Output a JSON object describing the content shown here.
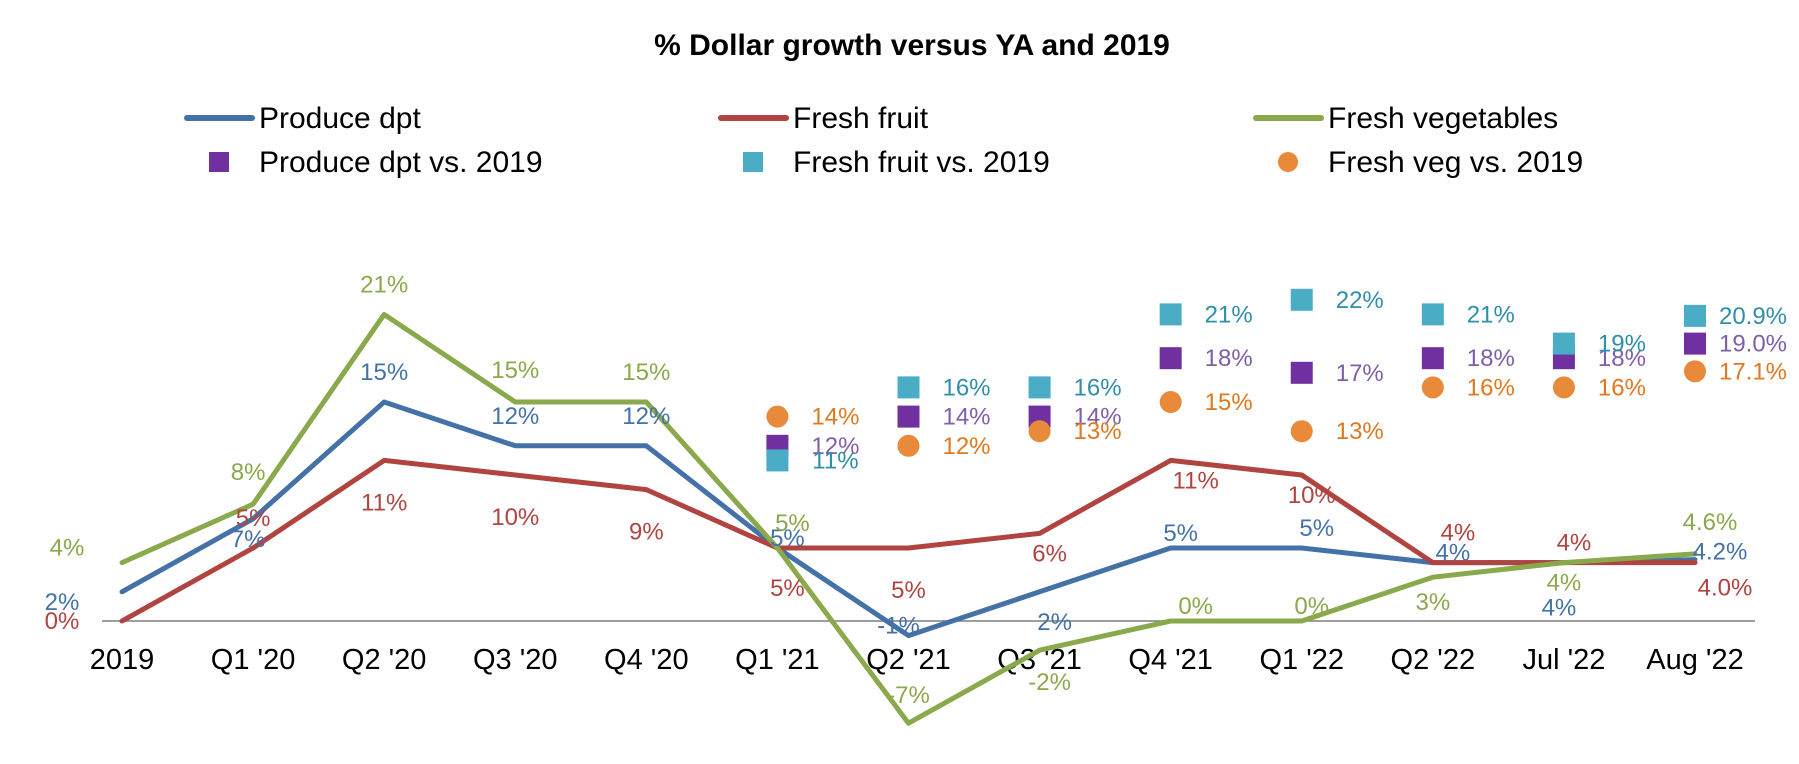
{
  "chart_data": {
    "type": "line",
    "title": "% Dollar growth versus YA and 2019",
    "xlabel": "",
    "ylabel": "",
    "ylim": [
      -10,
      30
    ],
    "grid": false,
    "legend_position": "top",
    "categories": [
      "2019",
      "Q1 '20",
      "Q2 '20",
      "Q3 '20",
      "Q4 '20",
      "Q1 '21",
      "Q2 '21",
      "Q3 '21",
      "Q4 '21",
      "Q1 '22",
      "Q2 '22",
      "Jul '22",
      "Aug '22"
    ],
    "series": [
      {
        "name": "Produce dpt",
        "kind": "line",
        "color": "#4472A8",
        "values": [
          2,
          7,
          15,
          12,
          12,
          5,
          -1,
          2,
          5,
          5,
          4,
          4,
          4.2
        ],
        "labels": [
          "2%",
          "7%",
          "15%",
          "12%",
          "12%",
          "5%",
          "-1%",
          "2%",
          "5%",
          "5%",
          "4%",
          "4%",
          "4.2%"
        ]
      },
      {
        "name": "Fresh fruit",
        "kind": "line",
        "color": "#B04440",
        "values": [
          0,
          5,
          11,
          10,
          9,
          5,
          5,
          6,
          11,
          10,
          4,
          4,
          4.0
        ],
        "labels": [
          "0%",
          "5%",
          "11%",
          "10%",
          "9%",
          "5%",
          "5%",
          "6%",
          "11%",
          "10%",
          "4%",
          "4%",
          "4.0%"
        ]
      },
      {
        "name": "Fresh vegetables",
        "kind": "line",
        "color": "#8AA84C",
        "values": [
          4,
          8,
          21,
          15,
          15,
          5,
          -7,
          -2,
          0,
          0,
          3,
          4,
          4.6
        ],
        "labels": [
          "4%",
          "8%",
          "21%",
          "15%",
          "15%",
          "5%",
          "-7%",
          "-2%",
          "0%",
          "0%",
          "3%",
          "4%",
          "4.6%"
        ]
      },
      {
        "name": "Produce dpt vs. 2019",
        "kind": "marker",
        "marker": "square",
        "color": "#7030A0",
        "label_color": "#7F5FA8",
        "values": [
          null,
          null,
          null,
          null,
          null,
          12,
          14,
          14,
          18,
          17,
          18,
          18,
          19.0
        ],
        "labels": [
          "",
          "",
          "",
          "",
          "",
          "12%",
          "14%",
          "14%",
          "18%",
          "17%",
          "18%",
          "18%",
          "19.0%"
        ]
      },
      {
        "name": "Fresh fruit vs. 2019",
        "kind": "marker",
        "marker": "square",
        "color": "#4BACC6",
        "label_color": "#2F8FA8",
        "values": [
          null,
          null,
          null,
          null,
          null,
          11,
          16,
          16,
          21,
          22,
          21,
          19,
          20.9
        ],
        "labels": [
          "",
          "",
          "",
          "",
          "",
          "11%",
          "16%",
          "16%",
          "21%",
          "22%",
          "21%",
          "19%",
          "20.9%"
        ]
      },
      {
        "name": "Fresh veg vs. 2019",
        "kind": "marker",
        "marker": "circle",
        "color": "#E88A3A",
        "label_color": "#E07820",
        "values": [
          null,
          null,
          null,
          null,
          null,
          14,
          12,
          13,
          15,
          13,
          16,
          16,
          17.1
        ],
        "labels": [
          "",
          "",
          "",
          "",
          "",
          "14%",
          "12%",
          "13%",
          "15%",
          "13%",
          "16%",
          "16%",
          "17.1%"
        ]
      }
    ]
  }
}
